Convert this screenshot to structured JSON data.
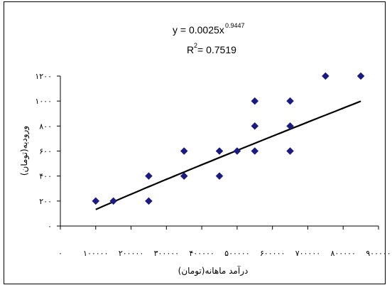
{
  "chart_data": {
    "type": "scatter",
    "title_lines": {
      "equation": "y = 0.0025x",
      "equation_exponent": "0.9447",
      "r_squared_prefix": "R",
      "r_squared_exponent": "2",
      "r_squared_value": " = 0.7519"
    },
    "xlabel": "درآمد ماهانه(تومان)",
    "ylabel": "ورودیه(تومان)",
    "xlim": [
      0,
      900000
    ],
    "ylim": [
      0,
      1200
    ],
    "x_ticks": [
      {
        "value": 0,
        "label": "۰"
      },
      {
        "value": 100000,
        "label": "۱۰۰۰۰۰"
      },
      {
        "value": 200000,
        "label": "۲۰۰۰۰۰"
      },
      {
        "value": 300000,
        "label": "۳۰۰۰۰۰"
      },
      {
        "value": 400000,
        "label": "۴۰۰۰۰۰"
      },
      {
        "value": 500000,
        "label": "۵۰۰۰۰۰"
      },
      {
        "value": 600000,
        "label": "۶۰۰۰۰۰"
      },
      {
        "value": 700000,
        "label": "۷۰۰۰۰۰"
      },
      {
        "value": 800000,
        "label": "۸۰۰۰۰۰"
      },
      {
        "value": 900000,
        "label": "۹۰۰۰۰۰"
      }
    ],
    "y_ticks": [
      {
        "value": 0,
        "label": "۰"
      },
      {
        "value": 200,
        "label": "۲۰۰"
      },
      {
        "value": 400,
        "label": "۴۰۰"
      },
      {
        "value": 600,
        "label": "۶۰۰"
      },
      {
        "value": 800,
        "label": "۸۰۰"
      },
      {
        "value": 1000,
        "label": "۱۰۰۰"
      },
      {
        "value": 1200,
        "label": "۱۲۰۰"
      }
    ],
    "points": [
      {
        "x": 100000,
        "y": 200
      },
      {
        "x": 150000,
        "y": 200
      },
      {
        "x": 250000,
        "y": 200
      },
      {
        "x": 250000,
        "y": 400
      },
      {
        "x": 350000,
        "y": 400
      },
      {
        "x": 350000,
        "y": 600
      },
      {
        "x": 450000,
        "y": 400
      },
      {
        "x": 450000,
        "y": 600
      },
      {
        "x": 500000,
        "y": 600
      },
      {
        "x": 550000,
        "y": 600
      },
      {
        "x": 550000,
        "y": 800
      },
      {
        "x": 550000,
        "y": 1000
      },
      {
        "x": 650000,
        "y": 600
      },
      {
        "x": 650000,
        "y": 800
      },
      {
        "x": 650000,
        "y": 1000
      },
      {
        "x": 750000,
        "y": 1200
      },
      {
        "x": 850000,
        "y": 1200
      }
    ],
    "trendline": {
      "type": "power",
      "coefficient": 0.0025,
      "exponent": 0.9447,
      "x_range": [
        100000,
        850000
      ]
    },
    "marker_color": "#1a1a80",
    "line_color": "#000000",
    "grid": false,
    "legend": "none"
  }
}
